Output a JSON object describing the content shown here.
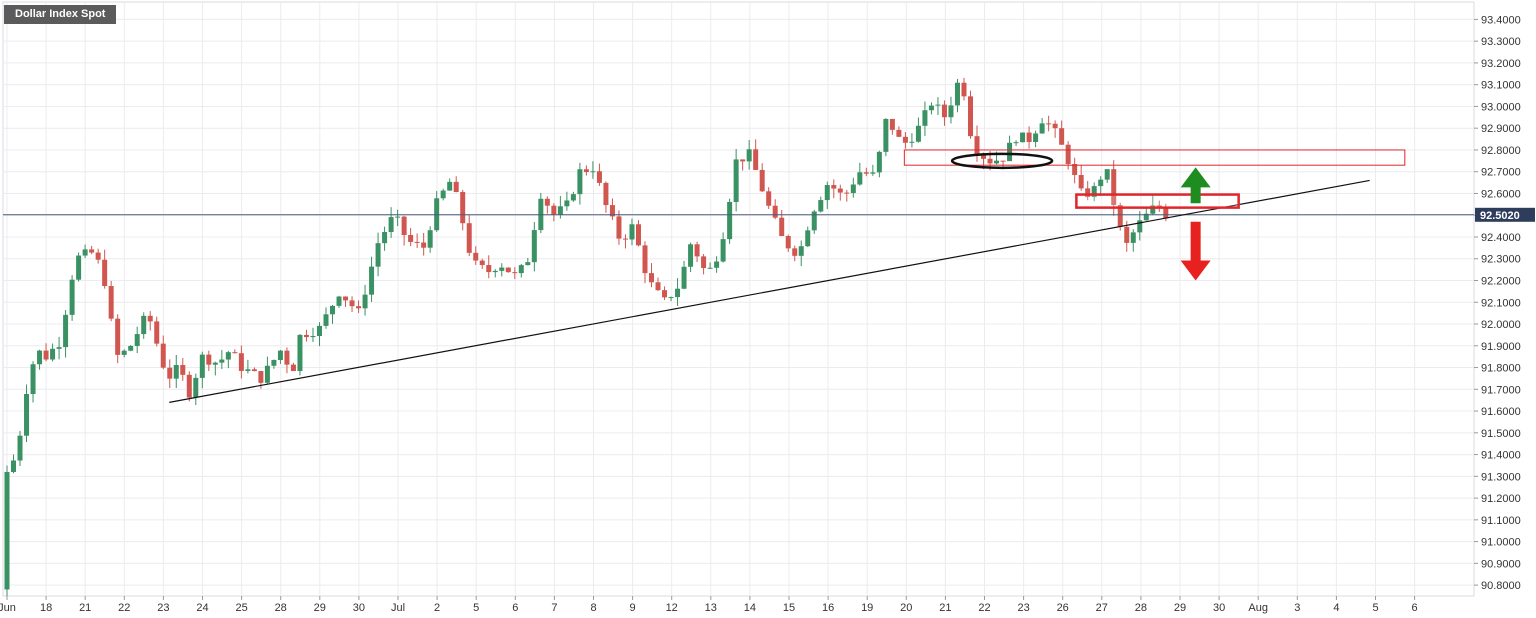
{
  "chart_data": {
    "type": "candlestick",
    "title": "Dollar Index Spot",
    "current_price": 92.502,
    "current_price_label": "92.5020",
    "ylim": [
      90.75,
      93.48
    ],
    "y_ticks": [
      "93.4000",
      "93.3000",
      "93.2000",
      "93.1000",
      "93.0000",
      "92.9000",
      "92.8000",
      "92.7000",
      "92.6000",
      "92.5000",
      "92.4000",
      "92.3000",
      "92.2000",
      "92.1000",
      "92.0000",
      "91.9000",
      "91.8000",
      "91.7000",
      "91.6000",
      "91.5000",
      "91.4000",
      "91.3000",
      "91.2000",
      "91.1000",
      "91.0000",
      "90.9000",
      "90.8000"
    ],
    "y_tick_values": [
      93.4,
      93.3,
      93.2,
      93.1,
      93.0,
      92.9,
      92.8,
      92.7,
      92.6,
      92.5,
      92.4,
      92.3,
      92.2,
      92.1,
      92.0,
      91.9,
      91.8,
      91.7,
      91.6,
      91.5,
      91.4,
      91.3,
      91.2,
      91.1,
      91.0,
      90.9,
      90.8
    ],
    "x_labels": [
      "Jun",
      "18",
      "21",
      "22",
      "23",
      "24",
      "25",
      "28",
      "29",
      "30",
      "Jul",
      "2",
      "5",
      "6",
      "7",
      "8",
      "9",
      "12",
      "13",
      "14",
      "15",
      "16",
      "19",
      "20",
      "21",
      "22",
      "23",
      "26",
      "27",
      "28",
      "29",
      "30",
      "Aug",
      "3",
      "4",
      "5",
      "6"
    ],
    "x_label_index": [
      0,
      2,
      4,
      6,
      8,
      10,
      12,
      14,
      16,
      18,
      20,
      22,
      24,
      26,
      28,
      30,
      32,
      34,
      36,
      38,
      40,
      42,
      44,
      46,
      48,
      50,
      52,
      54,
      56,
      58,
      60,
      62,
      64,
      66,
      68,
      70,
      72
    ],
    "x_slots": 73,
    "candle_anchors": [
      {
        "t": 0.0,
        "p": 91.32
      },
      {
        "t": 0.5,
        "p": 91.4
      },
      {
        "t": 1.0,
        "p": 91.7
      },
      {
        "t": 1.5,
        "p": 91.88
      },
      {
        "t": 2.0,
        "p": 91.85
      },
      {
        "t": 2.7,
        "p": 91.92
      },
      {
        "t": 3.5,
        "p": 92.3
      },
      {
        "t": 4.3,
        "p": 92.33
      },
      {
        "t": 4.9,
        "p": 92.25
      },
      {
        "t": 5.6,
        "p": 91.85
      },
      {
        "t": 6.2,
        "p": 91.88
      },
      {
        "t": 7.2,
        "p": 92.05
      },
      {
        "t": 8.2,
        "p": 91.75
      },
      {
        "t": 8.8,
        "p": 91.8
      },
      {
        "t": 9.3,
        "p": 91.68
      },
      {
        "t": 10.0,
        "p": 91.85
      },
      {
        "t": 10.8,
        "p": 91.82
      },
      {
        "t": 11.4,
        "p": 91.88
      },
      {
        "t": 12.0,
        "p": 91.8
      },
      {
        "t": 13.0,
        "p": 91.75
      },
      {
        "t": 14.0,
        "p": 91.88
      },
      {
        "t": 14.6,
        "p": 91.78
      },
      {
        "t": 15.0,
        "p": 91.95
      },
      {
        "t": 16.0,
        "p": 91.98
      },
      {
        "t": 17.0,
        "p": 92.15
      },
      {
        "t": 18.0,
        "p": 92.05
      },
      {
        "t": 19.0,
        "p": 92.38
      },
      {
        "t": 19.8,
        "p": 92.5
      },
      {
        "t": 20.5,
        "p": 92.38
      },
      {
        "t": 21.3,
        "p": 92.35
      },
      {
        "t": 22.0,
        "p": 92.56
      },
      {
        "t": 22.7,
        "p": 92.66
      },
      {
        "t": 23.1,
        "p": 92.55
      },
      {
        "t": 23.8,
        "p": 92.28
      },
      {
        "t": 24.6,
        "p": 92.24
      },
      {
        "t": 25.2,
        "p": 92.28
      },
      {
        "t": 26.0,
        "p": 92.22
      },
      {
        "t": 26.6,
        "p": 92.28
      },
      {
        "t": 27.3,
        "p": 92.6
      },
      {
        "t": 28.0,
        "p": 92.5
      },
      {
        "t": 28.7,
        "p": 92.55
      },
      {
        "t": 29.3,
        "p": 92.7
      },
      {
        "t": 30.0,
        "p": 92.72
      },
      {
        "t": 30.6,
        "p": 92.55
      },
      {
        "t": 31.4,
        "p": 92.38
      },
      {
        "t": 32.0,
        "p": 92.45
      },
      {
        "t": 32.8,
        "p": 92.2
      },
      {
        "t": 33.6,
        "p": 92.1
      },
      {
        "t": 34.4,
        "p": 92.18
      },
      {
        "t": 35.0,
        "p": 92.38
      },
      {
        "t": 35.8,
        "p": 92.22
      },
      {
        "t": 36.5,
        "p": 92.35
      },
      {
        "t": 37.3,
        "p": 92.75
      },
      {
        "t": 38.0,
        "p": 92.78
      },
      {
        "t": 38.9,
        "p": 92.55
      },
      {
        "t": 39.7,
        "p": 92.38
      },
      {
        "t": 40.5,
        "p": 92.32
      },
      {
        "t": 41.2,
        "p": 92.52
      },
      {
        "t": 42.0,
        "p": 92.65
      },
      {
        "t": 42.8,
        "p": 92.58
      },
      {
        "t": 43.6,
        "p": 92.7
      },
      {
        "t": 44.4,
        "p": 92.68
      },
      {
        "t": 45.0,
        "p": 92.95
      },
      {
        "t": 45.8,
        "p": 92.82
      },
      {
        "t": 46.5,
        "p": 92.88
      },
      {
        "t": 47.3,
        "p": 93.02
      },
      {
        "t": 48.0,
        "p": 92.95
      },
      {
        "t": 48.8,
        "p": 93.15
      },
      {
        "t": 49.4,
        "p": 92.82
      },
      {
        "t": 50.2,
        "p": 92.75
      },
      {
        "t": 50.9,
        "p": 92.76
      },
      {
        "t": 51.6,
        "p": 92.86
      },
      {
        "t": 52.3,
        "p": 92.85
      },
      {
        "t": 53.0,
        "p": 92.95
      },
      {
        "t": 53.6,
        "p": 92.88
      },
      {
        "t": 54.3,
        "p": 92.75
      },
      {
        "t": 54.9,
        "p": 92.6
      },
      {
        "t": 55.5,
        "p": 92.6
      },
      {
        "t": 56.2,
        "p": 92.72
      },
      {
        "t": 56.8,
        "p": 92.48
      },
      {
        "t": 57.2,
        "p": 92.35
      },
      {
        "t": 57.8,
        "p": 92.45
      },
      {
        "t": 58.3,
        "p": 92.5
      },
      {
        "t": 58.8,
        "p": 92.55
      },
      {
        "t": 59.3,
        "p": 92.5
      },
      {
        "t": 59.6,
        "p": 92.5
      }
    ],
    "trendline": {
      "from": {
        "t": 8.3,
        "p": 91.64
      },
      "to": {
        "t": 69.7,
        "p": 92.66
      }
    },
    "ellipse": {
      "t": 50.9,
      "p": 92.75
    },
    "zones": [
      {
        "t1": 45.9,
        "t2": 71.5,
        "p_top": 92.8,
        "p_bottom": 92.73
      },
      {
        "t1": 54.7,
        "t2": 63.0,
        "p_top": 92.595,
        "p_bottom": 92.535
      }
    ],
    "arrows": [
      {
        "direction": "up",
        "t": 60.8,
        "p_tip": 92.72,
        "p_tail": 92.555,
        "color": "#1e8c1e"
      },
      {
        "direction": "down",
        "t": 60.8,
        "p_tip": 92.2,
        "p_tail": 92.47,
        "color": "#e8201f"
      }
    ],
    "colors": {
      "up": "#3a9163",
      "down": "#d0564f",
      "price_line": "#4a5a7a",
      "zone": "#e0262a",
      "grid": "#ececf0",
      "text": "#333333"
    }
  }
}
